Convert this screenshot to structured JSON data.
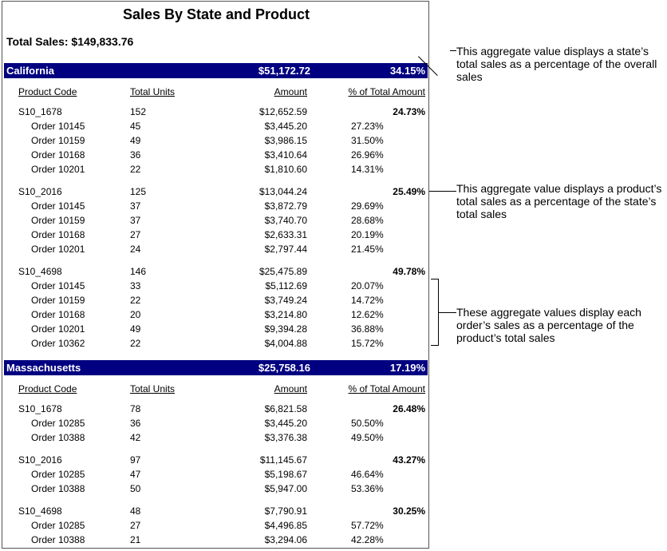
{
  "report": {
    "title": "Sales By State and Product",
    "total_sales": "Total Sales: $149,833.76",
    "headers": {
      "code": "Product Code",
      "units": "Total Units",
      "amount": "Amount",
      "pct": "% of Total Amount"
    },
    "states": [
      {
        "name": "California",
        "amount": "$51,172.72",
        "pct": "34.15%",
        "products": [
          {
            "code": "S10_1678",
            "units": "152",
            "amount": "$12,652.59",
            "pct": "24.73%",
            "orders": [
              {
                "name": "Order 10145",
                "units": "45",
                "amount": "$3,445.20",
                "pct": "27.23%"
              },
              {
                "name": "Order 10159",
                "units": "49",
                "amount": "$3,986.15",
                "pct": "31.50%"
              },
              {
                "name": "Order 10168",
                "units": "36",
                "amount": "$3,410.64",
                "pct": "26.96%"
              },
              {
                "name": "Order 10201",
                "units": "22",
                "amount": "$1,810.60",
                "pct": "14.31%"
              }
            ]
          },
          {
            "code": "S10_2016",
            "units": "125",
            "amount": "$13,044.24",
            "pct": "25.49%",
            "orders": [
              {
                "name": "Order 10145",
                "units": "37",
                "amount": "$3,872.79",
                "pct": "29.69%"
              },
              {
                "name": "Order 10159",
                "units": "37",
                "amount": "$3,740.70",
                "pct": "28.68%"
              },
              {
                "name": "Order 10168",
                "units": "27",
                "amount": "$2,633.31",
                "pct": "20.19%"
              },
              {
                "name": "Order 10201",
                "units": "24",
                "amount": "$2,797.44",
                "pct": "21.45%"
              }
            ]
          },
          {
            "code": "S10_4698",
            "units": "146",
            "amount": "$25,475.89",
            "pct": "49.78%",
            "orders": [
              {
                "name": "Order 10145",
                "units": "33",
                "amount": "$5,112.69",
                "pct": "20.07%"
              },
              {
                "name": "Order 10159",
                "units": "22",
                "amount": "$3,749.24",
                "pct": "14.72%"
              },
              {
                "name": "Order 10168",
                "units": "20",
                "amount": "$3,214.80",
                "pct": "12.62%"
              },
              {
                "name": "Order 10201",
                "units": "49",
                "amount": "$9,394.28",
                "pct": "36.88%"
              },
              {
                "name": "Order 10362",
                "units": "22",
                "amount": "$4,004.88",
                "pct": "15.72%"
              }
            ]
          }
        ]
      },
      {
        "name": "Massachusetts",
        "amount": "$25,758.16",
        "pct": "17.19%",
        "products": [
          {
            "code": "S10_1678",
            "units": "78",
            "amount": "$6,821.58",
            "pct": "26.48%",
            "orders": [
              {
                "name": "Order 10285",
                "units": "36",
                "amount": "$3,445.20",
                "pct": "50.50%"
              },
              {
                "name": "Order 10388",
                "units": "42",
                "amount": "$3,376.38",
                "pct": "49.50%"
              }
            ]
          },
          {
            "code": "S10_2016",
            "units": "97",
            "amount": "$11,145.67",
            "pct": "43.27%",
            "orders": [
              {
                "name": "Order 10285",
                "units": "47",
                "amount": "$5,198.67",
                "pct": "46.64%"
              },
              {
                "name": "Order 10388",
                "units": "50",
                "amount": "$5,947.00",
                "pct": "53.36%"
              }
            ]
          },
          {
            "code": "S10_4698",
            "units": "48",
            "amount": "$7,790.91",
            "pct": "30.25%",
            "orders": [
              {
                "name": "Order 10285",
                "units": "27",
                "amount": "$4,496.85",
                "pct": "57.72%"
              },
              {
                "name": "Order 10388",
                "units": "21",
                "amount": "$3,294.06",
                "pct": "42.28%"
              }
            ]
          }
        ]
      }
    ]
  },
  "annotations": [
    {
      "text": "This aggregate value displays a state’s total sales as a percentage of the overall sales"
    },
    {
      "text": "This aggregate value displays a product’s total sales as a percentage of the state’s total sales"
    },
    {
      "text": "These aggregate values display each order’s sales as a percentage of the product’s total sales"
    }
  ]
}
